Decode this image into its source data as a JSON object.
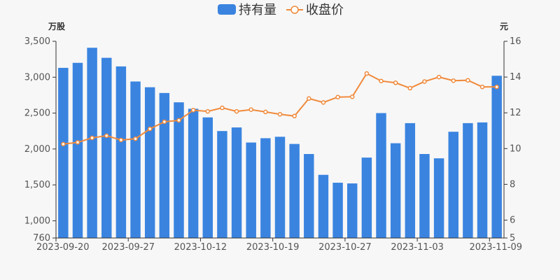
{
  "chart_data": {
    "type": "bar+line",
    "legend": [
      "持有量",
      "收盘价"
    ],
    "legend_position": "top-center",
    "x": [
      "2023-09-20",
      "2023-09-21",
      "2023-09-22",
      "2023-09-25",
      "2023-09-26",
      "2023-09-27",
      "2023-09-28",
      "2023-10-09",
      "2023-10-10",
      "2023-10-11",
      "2023-10-12",
      "2023-10-13",
      "2023-10-16",
      "2023-10-17",
      "2023-10-18",
      "2023-10-19",
      "2023-10-20",
      "2023-10-23",
      "2023-10-24",
      "2023-10-25",
      "2023-10-26",
      "2023-10-27",
      "2023-10-30",
      "2023-10-31",
      "2023-11-01",
      "2023-11-02",
      "2023-11-03",
      "2023-11-06",
      "2023-11-07",
      "2023-11-08",
      "2023-11-09"
    ],
    "x_tick_labels": [
      "2023-09-20",
      "2023-09-27",
      "2023-10-12",
      "2023-10-19",
      "2023-10-27",
      "2023-11-03",
      "2023-11-09"
    ],
    "x_tick_indices": [
      0,
      5,
      10,
      15,
      20,
      25,
      30
    ],
    "series": [
      {
        "name": "持有量",
        "type": "bar",
        "axis": "left",
        "color": "#3a84e0",
        "values": [
          3130,
          3200,
          3410,
          3270,
          3150,
          2940,
          2860,
          2780,
          2650,
          2560,
          2440,
          2250,
          2300,
          2090,
          2150,
          2170,
          2070,
          1930,
          1640,
          1530,
          1520,
          1880,
          2500,
          2080,
          2360,
          1930,
          1870,
          2240,
          2360,
          2370,
          3020
        ]
      },
      {
        "name": "收盘价",
        "type": "line",
        "axis": "right",
        "color": "#f08a3c",
        "values": [
          10.25,
          10.35,
          10.6,
          10.72,
          10.48,
          10.55,
          11.1,
          11.5,
          11.58,
          12.15,
          12.08,
          12.28,
          12.08,
          12.18,
          12.05,
          11.92,
          11.82,
          12.8,
          12.58,
          12.88,
          12.9,
          14.2,
          13.78,
          13.68,
          13.38,
          13.75,
          14.0,
          13.8,
          13.82,
          13.45,
          13.45
        ]
      }
    ],
    "y_left": {
      "label": "万股",
      "min": 760,
      "max": 3500,
      "ticks": [
        760,
        1000,
        1500,
        2000,
        2500,
        3000,
        3500
      ],
      "tick_labels": [
        "760",
        "1,000",
        "1,500",
        "2,000",
        "2,500",
        "3,000",
        "3,500"
      ]
    },
    "y_right": {
      "label": "元",
      "min": 5,
      "max": 16,
      "ticks": [
        5,
        6,
        8,
        10,
        12,
        14,
        16
      ],
      "tick_labels": [
        "5",
        "6",
        "8",
        "10",
        "12",
        "14",
        "16"
      ]
    },
    "grid": false
  }
}
